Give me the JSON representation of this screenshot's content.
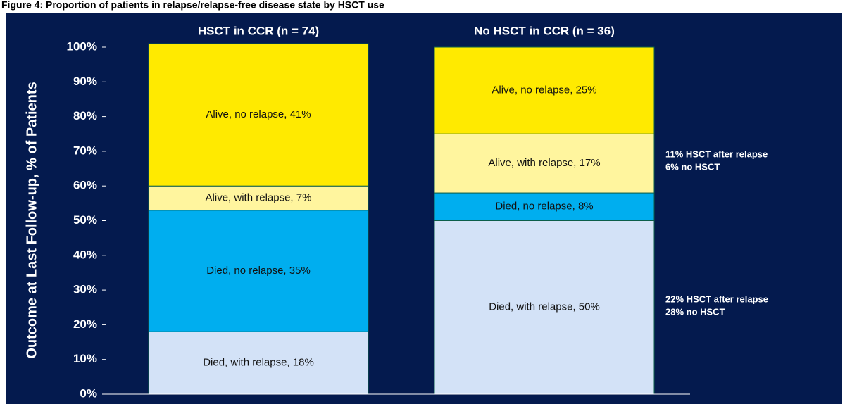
{
  "chart_data": {
    "type": "stacked_bar",
    "title": "Figure 4: Proportion of patients in relapse/relapse-free disease state by HSCT use",
    "y_label": "Outcome at Last Follow-up, % of Patients",
    "categories": [
      "HSCT in CCR (n = 74)",
      "No HSCT in CCR (n = 36)"
    ],
    "series": [
      {
        "color": "#d3e2f7",
        "values": [
          18,
          50
        ],
        "value_labels": [
          "Died, with relapse, 18%",
          "Died, with relapse, 50%"
        ]
      },
      {
        "color": "#00aeef",
        "values": [
          35,
          8
        ],
        "value_labels": [
          "Died, no relapse, 35%",
          "Died, no relapse, 8%"
        ]
      },
      {
        "color": "#fff59e",
        "values": [
          7,
          17
        ],
        "value_labels": [
          "Alive, with relapse, 7%",
          "Alive, with relapse, 17%"
        ]
      },
      {
        "color": "#ffea00",
        "values": [
          41,
          25
        ],
        "value_labels": [
          "Alive, no relapse, 41%",
          "Alive, no relapse, 25%"
        ]
      }
    ],
    "ylim": [
      0,
      100
    ],
    "yticks": [
      {
        "value": 0,
        "label": "0%"
      },
      {
        "value": 10,
        "label": "10%"
      },
      {
        "value": 20,
        "label": "20%"
      },
      {
        "value": 30,
        "label": "30%"
      },
      {
        "value": 40,
        "label": "40%"
      },
      {
        "value": 50,
        "label": "50%"
      },
      {
        "value": 60,
        "label": "60%"
      },
      {
        "value": 70,
        "label": "70%"
      },
      {
        "value": 80,
        "label": "80%"
      },
      {
        "value": 90,
        "label": "90%"
      },
      {
        "value": 100,
        "label": "100%"
      }
    ],
    "annotations": [
      "11% HSCT after relapse",
      "6% no HSCT",
      "22% HSCT after relapse",
      "28% no HSCT"
    ]
  }
}
